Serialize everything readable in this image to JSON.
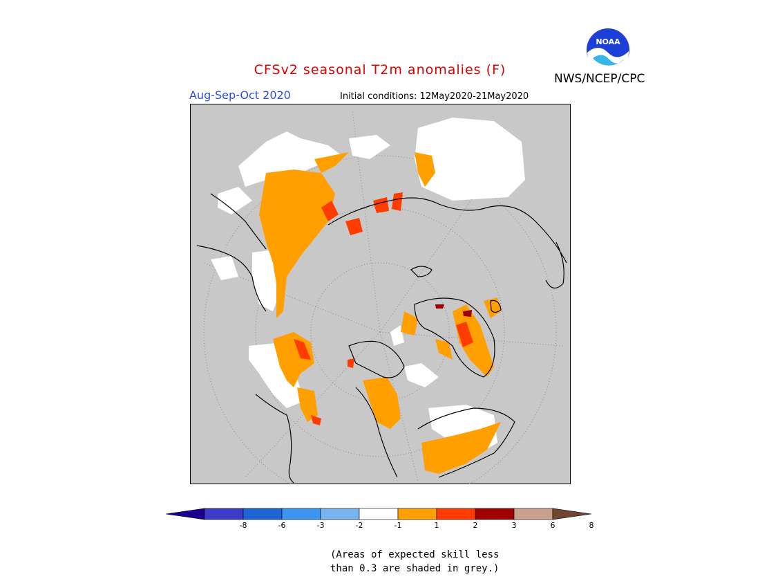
{
  "header": {
    "title": "CFSv2 seasonal T2m anomalies (F)",
    "period": "Aug-Sep-Oct 2020",
    "initial_conditions": "Initial conditions: 12May2020-21May2020",
    "agency": "NWS/NCEP/CPC",
    "logo_text": "NOAA"
  },
  "colorbar": {
    "ticks": [
      "-8",
      "-6",
      "-3",
      "-2",
      "-1",
      "1",
      "2",
      "3",
      "6",
      "8"
    ],
    "colors": [
      "#1a008c",
      "#3c3cc8",
      "#1e64d2",
      "#3c96f0",
      "#78b4f0",
      "#ffffff",
      "#ffa000",
      "#ff3c00",
      "#a00000",
      "#c8a08c",
      "#6e4632"
    ]
  },
  "note": {
    "line1": "(Areas of expected skill less",
    "line2": "than 0.3 are shaded in grey.)"
  },
  "map": {
    "projection": "north-polar-stereographic",
    "colors": {
      "background": "#c8c8c8",
      "orange": "#ffa000",
      "red": "#ff3c00",
      "darkred": "#a00000",
      "white": "#ffffff",
      "coast": "#000000"
    }
  }
}
